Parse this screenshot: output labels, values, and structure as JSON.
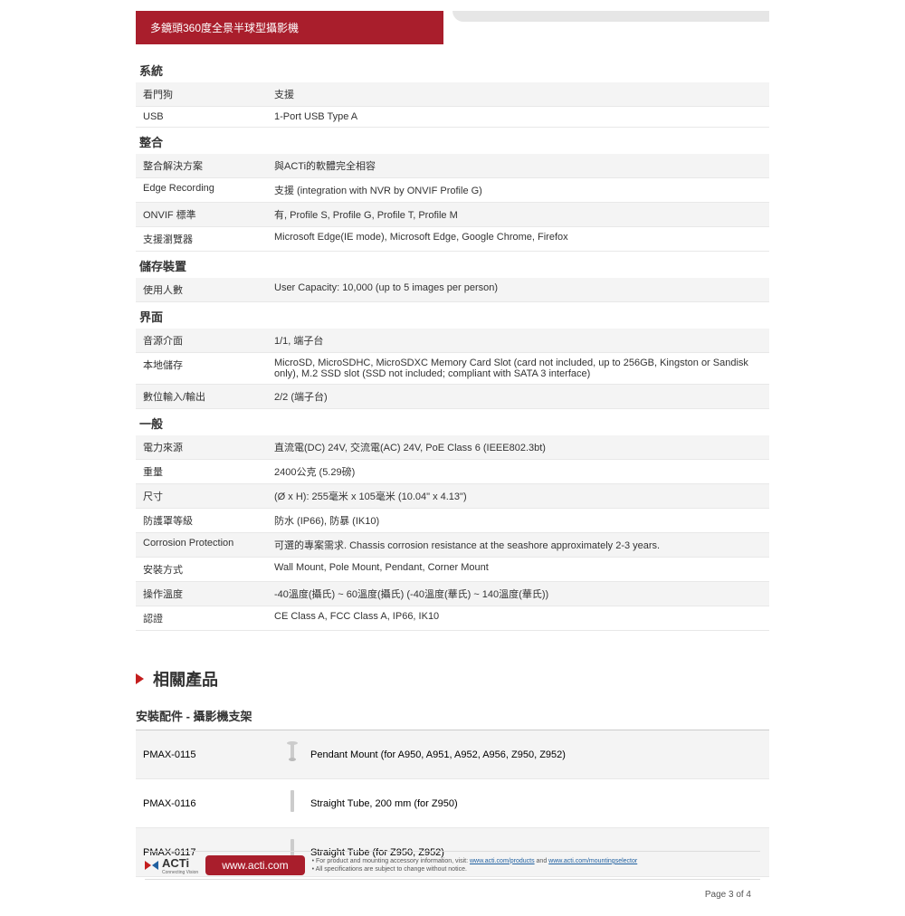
{
  "header": {
    "title": "多鏡頭360度全景半球型攝影機"
  },
  "sections": [
    {
      "title": "系統",
      "rows": [
        {
          "label": "看門狗",
          "value": "支援"
        },
        {
          "label": "USB",
          "value": "1-Port USB Type A"
        }
      ]
    },
    {
      "title": "整合",
      "rows": [
        {
          "label": "整合解決方案",
          "value": "與ACTi的軟體完全相容"
        },
        {
          "label": "Edge Recording",
          "value": "支援 (integration with NVR by ONVIF Profile G)"
        },
        {
          "label": "ONVIF 標準",
          "value": "有, Profile S, Profile G, Profile T, Profile M"
        },
        {
          "label": "支援瀏覽器",
          "value": "Microsoft Edge(IE mode), Microsoft Edge, Google Chrome, Firefox"
        }
      ]
    },
    {
      "title": "儲存裝置",
      "rows": [
        {
          "label": "使用人數",
          "value": "User Capacity: 10,000 (up to 5 images per person)"
        }
      ]
    },
    {
      "title": "界面",
      "rows": [
        {
          "label": "音源介面",
          "value": "1/1, 端子台"
        },
        {
          "label": "本地儲存",
          "value": "MicroSD, MicroSDHC, MicroSDXC Memory Card Slot (card not included, up to 256GB, Kingston or Sandisk only), M.2 SSD slot (SSD not included; compliant with SATA 3 interface)"
        },
        {
          "label": "數位輸入/輸出",
          "value": "2/2 (端子台)"
        }
      ]
    },
    {
      "title": "一般",
      "rows": [
        {
          "label": "電力來源",
          "value": "直流電(DC) 24V, 交流電(AC) 24V, PoE Class 6 (IEEE802.3bt)"
        },
        {
          "label": "重量",
          "value": "2400公克 (5.29磅)"
        },
        {
          "label": "尺寸",
          "value": "(Ø x H): 255毫米 x 105毫米 (10.04\" x 4.13\")"
        },
        {
          "label": "防護罩等級",
          "value": "防水 (IP66), 防暴 (IK10)"
        },
        {
          "label": "Corrosion Protection",
          "value": "可選的專案需求. Chassis corrosion resistance at the seashore approximately 2-3 years."
        },
        {
          "label": "安裝方式",
          "value": "Wall Mount, Pole Mount, Pendant, Corner Mount"
        },
        {
          "label": "操作溫度",
          "value": "-40溫度(攝氏) ~ 60溫度(攝氏) (-40溫度(華氏) ~ 140溫度(華氏))"
        },
        {
          "label": "認證",
          "value": "CE Class A, FCC Class A, IP66, IK10"
        }
      ]
    }
  ],
  "related": {
    "heading": "相關產品",
    "subtitle": "安裝配件 - 攝影機支架",
    "items": [
      {
        "id": "PMAX-0115",
        "desc": "Pendant Mount (for A950, A951, A952, A956, Z950, Z952)",
        "icon": "pendant"
      },
      {
        "id": "PMAX-0116",
        "desc": "Straight Tube, 200 mm (for Z950)",
        "icon": "tube"
      },
      {
        "id": "PMAX-0117",
        "desc": "Straight Tube (for Z950, Z952)",
        "icon": "tube"
      }
    ]
  },
  "footer": {
    "logo_text": "ACTi",
    "logo_sub": "Connecting Vision",
    "url": "www.acti.com",
    "note_prefix": "• For product and mounting accessory information, visit: ",
    "link1": "www.acti.com/products",
    "and": " and ",
    "link2": "www.acti.com/mountingselector",
    "note2": "• All specifications are subject to change without notice.",
    "page": "Page 3 of 4"
  },
  "colors": {
    "brand_red": "#a91e2c",
    "row_alt": "#f4f4f4",
    "border": "#e8e8e8"
  }
}
